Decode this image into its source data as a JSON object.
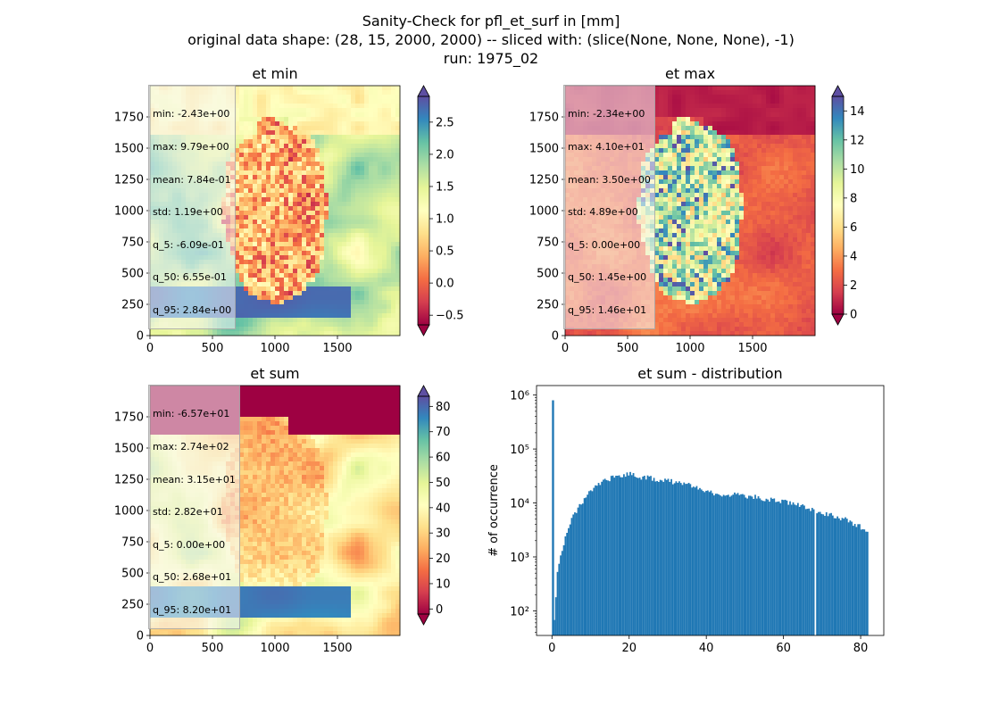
{
  "figure": {
    "title_lines": [
      "Sanity-Check for pfl_et_surf in [mm]",
      "original data shape: (28, 15, 2000, 2000) -- sliced with: (slice(None, None, None), -1)",
      "run: 1975_02"
    ],
    "colormap": "Spectral",
    "colors": {
      "histogram_bar": "#1f77b4",
      "colormap_stops": [
        "#9e0142",
        "#d53e4f",
        "#f46d43",
        "#fdae61",
        "#fee08b",
        "#ffffbf",
        "#e6f598",
        "#abdda4",
        "#66c2a5",
        "#3288bd",
        "#5e4fa2"
      ]
    }
  },
  "chart_data": [
    {
      "type": "heatmap",
      "title": "et min",
      "x_ticks": [
        "0",
        "500",
        "1000",
        "1500"
      ],
      "y_ticks": [
        "0",
        "250",
        "500",
        "750",
        "1000",
        "1250",
        "1500",
        "1750"
      ],
      "xlim": [
        0,
        2000
      ],
      "ylim": [
        0,
        2000
      ],
      "colorbar": {
        "vmin": -0.65,
        "vmax": 2.9,
        "ticks": [
          "−0.5",
          "0.0",
          "0.5",
          "1.0",
          "1.5",
          "2.0",
          "2.5"
        ],
        "extend": "both"
      },
      "stats": [
        "min: -2.43e+00",
        "max: 9.79e+00",
        "mean: 7.84e-01",
        "std: 1.19e+00",
        "q_5: -6.09e-01",
        "q_50: 6.55e-01",
        "q_95: 2.84e+00"
      ]
    },
    {
      "type": "heatmap",
      "title": "et max",
      "x_ticks": [
        "0",
        "500",
        "1000",
        "1500"
      ],
      "y_ticks": [
        "0",
        "250",
        "500",
        "750",
        "1000",
        "1250",
        "1500",
        "1750"
      ],
      "xlim": [
        0,
        2000
      ],
      "ylim": [
        0,
        2000
      ],
      "colorbar": {
        "vmin": 0,
        "vmax": 15,
        "ticks": [
          "0",
          "2",
          "4",
          "6",
          "8",
          "10",
          "12",
          "14"
        ],
        "extend": "both"
      },
      "stats": [
        "min: -2.34e+00",
        "max: 4.10e+01",
        "mean: 3.50e+00",
        "std: 4.89e+00",
        "q_5: 0.00e+00",
        "q_50: 1.45e+00",
        "q_95: 1.46e+01"
      ]
    },
    {
      "type": "heatmap",
      "title": "et sum",
      "x_ticks": [
        "0",
        "500",
        "1000",
        "1500"
      ],
      "y_ticks": [
        "0",
        "250",
        "500",
        "750",
        "1000",
        "1250",
        "1500",
        "1750"
      ],
      "xlim": [
        0,
        2000
      ],
      "ylim": [
        0,
        2000
      ],
      "colorbar": {
        "vmin": -2,
        "vmax": 84,
        "ticks": [
          "0",
          "10",
          "20",
          "30",
          "40",
          "50",
          "60",
          "70",
          "80"
        ],
        "extend": "both"
      },
      "stats": [
        "min: -6.57e+01",
        "max: 2.74e+02",
        "mean: 3.15e+01",
        "std: 2.82e+01",
        "q_5: 0.00e+00",
        "q_50: 2.68e+01",
        "q_95: 8.20e+01"
      ]
    },
    {
      "type": "bar",
      "title": "et sum - distribution",
      "ylabel": "# of occurrence",
      "yscale": "log",
      "xlim": [
        -4,
        86
      ],
      "ylim": [
        35,
        1500000
      ],
      "x_ticks": [
        "0",
        "20",
        "40",
        "60",
        "80"
      ],
      "y_ticks": [
        "10²",
        "10³",
        "10⁴",
        "10⁵",
        "10⁶"
      ],
      "bin_width": 0.41,
      "bins_start": 0,
      "peak": {
        "x": 0.0,
        "count": 800000
      },
      "envelope": [
        [
          0.4,
          60
        ],
        [
          0.8,
          180
        ],
        [
          1.2,
          500
        ],
        [
          2.0,
          1000
        ],
        [
          3.0,
          2000
        ],
        [
          4.0,
          3500
        ],
        [
          5.0,
          5200
        ],
        [
          6.0,
          7000
        ],
        [
          8.0,
          11500
        ],
        [
          10.0,
          17000
        ],
        [
          12.0,
          22000
        ],
        [
          14.0,
          27000
        ],
        [
          16.0,
          30000
        ],
        [
          18.0,
          33000
        ],
        [
          20.0,
          35000
        ],
        [
          22.0,
          31000
        ],
        [
          25.0,
          29000
        ],
        [
          28.0,
          27000
        ],
        [
          30.0,
          26000
        ],
        [
          32.0,
          24000
        ],
        [
          35.0,
          22000
        ],
        [
          38.0,
          19000
        ],
        [
          40.0,
          17000
        ],
        [
          42.0,
          15000
        ],
        [
          45.0,
          14500
        ],
        [
          48.0,
          14000
        ],
        [
          50.0,
          13500
        ],
        [
          52.0,
          13000
        ],
        [
          55.0,
          12000
        ],
        [
          58.0,
          11000
        ],
        [
          60.0,
          10500
        ],
        [
          62.0,
          9500
        ],
        [
          64.0,
          9000
        ],
        [
          66.0,
          8000
        ],
        [
          68.0,
          7000
        ],
        [
          70.0,
          6500
        ],
        [
          72.0,
          6000
        ],
        [
          74.0,
          5500
        ],
        [
          76.0,
          5000
        ],
        [
          78.0,
          4200
        ],
        [
          80.0,
          3500
        ],
        [
          81.6,
          3000
        ]
      ],
      "gap_x": 68
    }
  ]
}
